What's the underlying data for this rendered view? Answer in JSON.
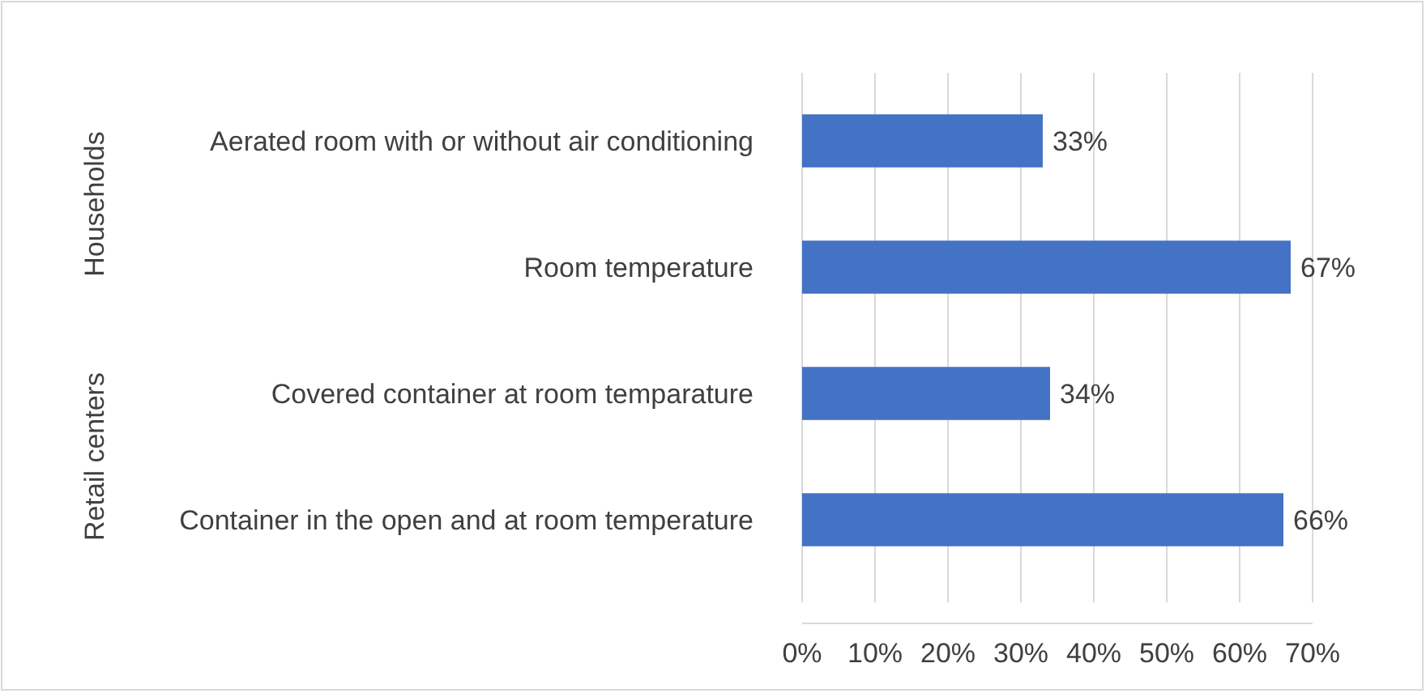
{
  "chart_data": {
    "type": "bar",
    "orientation": "horizontal",
    "categories": [
      "Aerated room with or without air conditioning",
      "Room temperature",
      "Covered container at room temparature",
      "Container in the open and at room temperature"
    ],
    "values": [
      33,
      67,
      34,
      66
    ],
    "color": "#4472c4",
    "data_labels": true,
    "value_labels": [
      "33%",
      "67%",
      "34%",
      "66%"
    ],
    "xlim": [
      0,
      70
    ],
    "xticks": [
      {
        "value": 0,
        "label": "0%"
      },
      {
        "value": 10,
        "label": "10%"
      },
      {
        "value": 20,
        "label": "20%"
      },
      {
        "value": 30,
        "label": "30%"
      },
      {
        "value": 40,
        "label": "40%"
      },
      {
        "value": 50,
        "label": "50%"
      },
      {
        "value": 60,
        "label": "60%"
      },
      {
        "value": 70,
        "label": "70%"
      }
    ],
    "grid": "x",
    "annotations": [
      "Households",
      "Retail centers"
    ]
  }
}
